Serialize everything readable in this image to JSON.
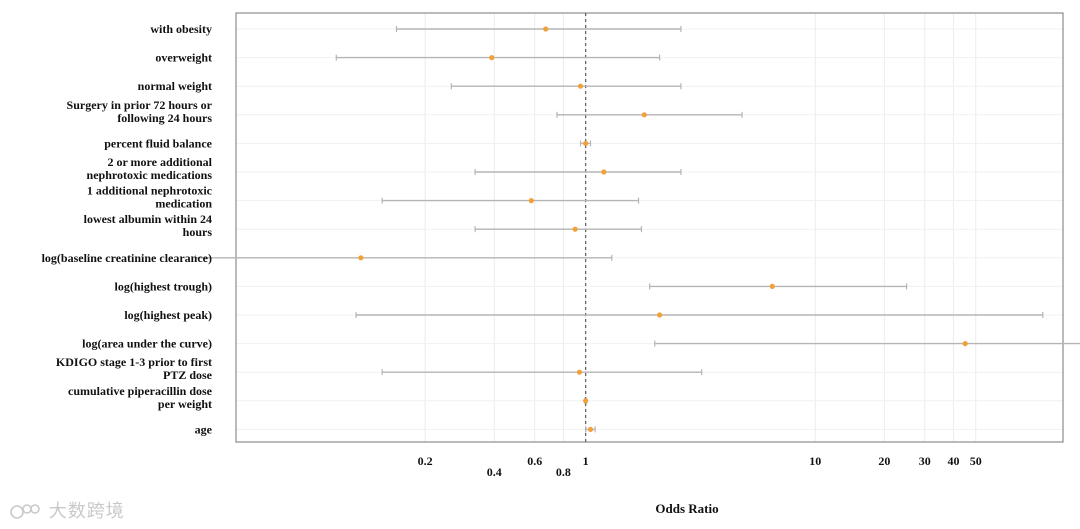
{
  "chart_data": {
    "type": "forest",
    "title": "",
    "xlabel": "Odds Ratio",
    "ylabel": "",
    "x_scale": "log",
    "xlim": [
      0.03,
      120
    ],
    "reference_line": 1,
    "grid": true,
    "marker_color": "#f2a13a",
    "ci_color": "#b5b5b5",
    "x_ticks": [
      {
        "value": 0.2,
        "label": "0.2",
        "row": 1
      },
      {
        "value": 0.4,
        "label": "0.4",
        "row": 2
      },
      {
        "value": 0.6,
        "label": "0.6",
        "row": 1
      },
      {
        "value": 0.8,
        "label": "0.8",
        "row": 2
      },
      {
        "value": 1,
        "label": "1",
        "row": 1
      },
      {
        "value": 10,
        "label": "10",
        "row": 1
      },
      {
        "value": 20,
        "label": "20",
        "row": 1
      },
      {
        "value": 30,
        "label": "30",
        "row": 1
      },
      {
        "value": 40,
        "label": "40",
        "row": 1
      },
      {
        "value": 50,
        "label": "50",
        "row": 1
      }
    ],
    "rows": [
      {
        "label": [
          "with obesity"
        ],
        "or": 0.67,
        "lo": 0.15,
        "hi": 2.6
      },
      {
        "label": [
          "overweight"
        ],
        "or": 0.39,
        "lo": 0.082,
        "hi": 2.1
      },
      {
        "label": [
          "normal weight"
        ],
        "or": 0.95,
        "lo": 0.26,
        "hi": 2.6
      },
      {
        "label": [
          "Surgery in prior 72 hours or",
          "following 24 hours"
        ],
        "or": 1.8,
        "lo": 0.75,
        "hi": 4.8
      },
      {
        "label": [
          "percent fluid balance"
        ],
        "or": 1.0,
        "lo": 0.95,
        "hi": 1.05
      },
      {
        "label": [
          "2 or more additional",
          "nephrotoxic medications"
        ],
        "or": 1.2,
        "lo": 0.33,
        "hi": 2.6
      },
      {
        "label": [
          "1 additional nephrotoxic",
          "medication"
        ],
        "or": 0.58,
        "lo": 0.13,
        "hi": 1.7
      },
      {
        "label": [
          "lowest albumin within 24",
          "hours"
        ],
        "or": 0.9,
        "lo": 0.33,
        "hi": 1.75
      },
      {
        "label": [
          "log(baseline creatinine clearance)"
        ],
        "or": 0.105,
        "lo": 0.02,
        "hi": 1.3
      },
      {
        "label": [
          "log(highest trough)"
        ],
        "or": 6.5,
        "lo": 1.9,
        "hi": 25
      },
      {
        "label": [
          "log(highest peak)"
        ],
        "or": 2.1,
        "lo": 0.1,
        "hi": 98
      },
      {
        "label": [
          "log(area under the curve)"
        ],
        "or": 45,
        "lo": 2.0,
        "hi": 190
      },
      {
        "label": [
          "KDIGO stage 1-3 prior to first",
          "PTZ dose"
        ],
        "or": 0.94,
        "lo": 0.13,
        "hi": 3.2
      },
      {
        "label": [
          "cumulative piperacillin dose",
          "per weight"
        ],
        "or": 1.0,
        "lo": 0.99,
        "hi": 1.01
      },
      {
        "label": [
          "age"
        ],
        "or": 1.05,
        "lo": 1.0,
        "hi": 1.1
      }
    ]
  },
  "watermark": {
    "text": "大数跨境"
  }
}
